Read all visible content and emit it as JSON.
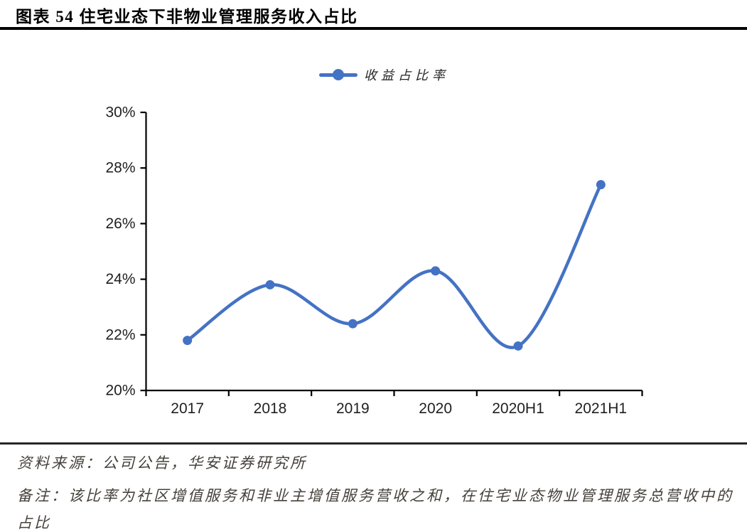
{
  "title": "图表 54 住宅业态下非物业管理服务收入占比",
  "legend": {
    "label": "收益占比率",
    "marker_color": "#4472C4"
  },
  "footer": {
    "source": "资料来源：公司公告，华安证券研究所",
    "note": "备注：该比率为社区增值服务和非业主增值服务营收之和，在住宅业态物业管理服务总营收中的占比"
  },
  "theme": {
    "line_color": "#4472C4",
    "axis_color": "#000000",
    "text_color": "#1f1f1f",
    "footer_text_color": "#45413a",
    "background": "#ffffff"
  },
  "chart_data": {
    "type": "line",
    "categories": [
      "2017",
      "2018",
      "2019",
      "2020",
      "2020H1",
      "2021H1"
    ],
    "series": [
      {
        "name": "收益占比率",
        "values": [
          21.8,
          23.8,
          22.4,
          24.3,
          21.6,
          27.4
        ]
      }
    ],
    "title": "住宅业态下非物业管理服务收入占比",
    "xlabel": "",
    "ylabel": "",
    "ylim": [
      20,
      30
    ],
    "yticks": [
      {
        "value": 20,
        "label": "20%"
      },
      {
        "value": 22,
        "label": "22%"
      },
      {
        "value": 24,
        "label": "24%"
      },
      {
        "value": 26,
        "label": "26%"
      },
      {
        "value": 28,
        "label": "28%"
      },
      {
        "value": 30,
        "label": "30%"
      }
    ],
    "grid": false,
    "smooth": true,
    "marker": "circle",
    "legend_position": "top-center",
    "line_color": "#4472C4",
    "axis_color": "#000000"
  }
}
